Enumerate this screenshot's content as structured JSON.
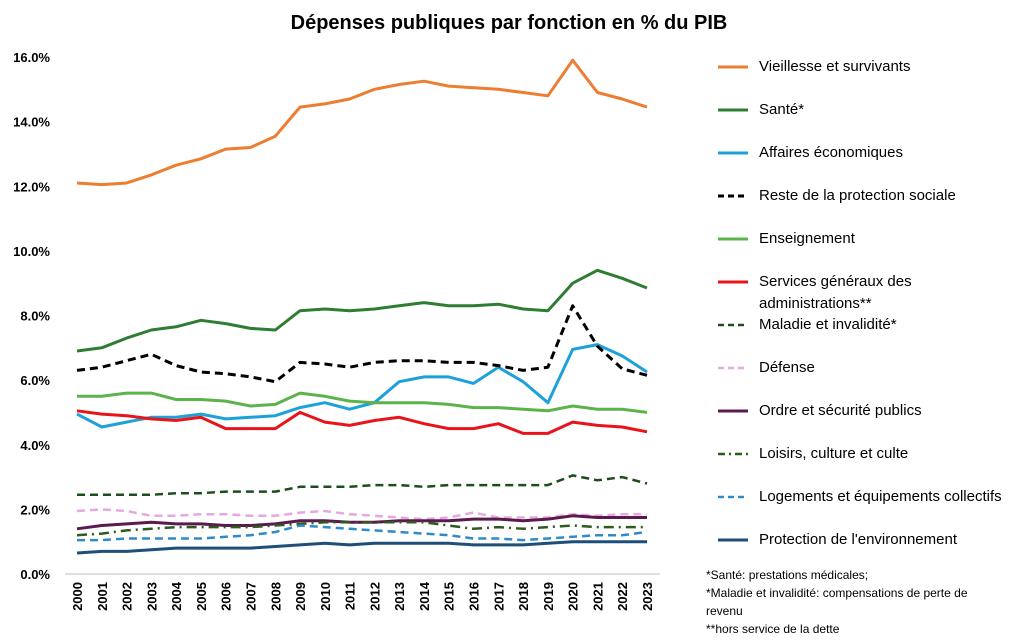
{
  "chart_data": {
    "type": "line",
    "title": "Dépenses publiques par fonction en % du PIB",
    "xlabel": "",
    "ylabel": "",
    "ylim": [
      0,
      16
    ],
    "yticks": [
      "0.0%",
      "2.0%",
      "4.0%",
      "6.0%",
      "8.0%",
      "10.0%",
      "12.0%",
      "14.0%",
      "16.0%"
    ],
    "grid": false,
    "legend_position": "right",
    "categories": [
      "2000",
      "2001",
      "2002",
      "2003",
      "2004",
      "2005",
      "2006",
      "2007",
      "2008",
      "2009",
      "2010",
      "2011",
      "2012",
      "2013",
      "2014",
      "2015",
      "2016",
      "2017",
      "2018",
      "2019",
      "2020",
      "2021",
      "2022",
      "2023"
    ],
    "series": [
      {
        "name": "Vieillesse et survivants",
        "color": "#ed7d31",
        "dash": "solid",
        "width": 3,
        "values": [
          12.1,
          12.05,
          12.1,
          12.35,
          12.65,
          12.85,
          13.15,
          13.2,
          13.55,
          14.45,
          14.55,
          14.7,
          15.0,
          15.15,
          15.25,
          15.1,
          15.05,
          15.0,
          14.9,
          14.8,
          15.9,
          14.9,
          14.7,
          14.45
        ]
      },
      {
        "name": "Santé*",
        "color": "#2e7d32",
        "dash": "solid",
        "width": 3,
        "values": [
          6.9,
          7.0,
          7.3,
          7.55,
          7.65,
          7.85,
          7.75,
          7.6,
          7.55,
          8.15,
          8.2,
          8.15,
          8.2,
          8.3,
          8.4,
          8.3,
          8.3,
          8.35,
          8.2,
          8.15,
          9.0,
          9.4,
          9.15,
          8.85
        ]
      },
      {
        "name": "Affaires économiques",
        "color": "#1ca1d9",
        "dash": "solid",
        "width": 3,
        "values": [
          4.95,
          4.55,
          4.7,
          4.85,
          4.85,
          4.95,
          4.8,
          4.85,
          4.9,
          5.15,
          5.3,
          5.1,
          5.3,
          5.95,
          6.1,
          6.1,
          5.9,
          6.4,
          5.95,
          5.3,
          6.95,
          7.1,
          6.75,
          6.25
        ]
      },
      {
        "name": "Reste de la protection sociale",
        "color": "#000000",
        "dash": "dash",
        "width": 3,
        "values": [
          6.3,
          6.4,
          6.6,
          6.8,
          6.45,
          6.25,
          6.2,
          6.1,
          5.95,
          6.55,
          6.5,
          6.4,
          6.55,
          6.6,
          6.6,
          6.55,
          6.55,
          6.45,
          6.3,
          6.4,
          8.3,
          7.05,
          6.35,
          6.15
        ]
      },
      {
        "name": "Enseignement",
        "color": "#5cb34a",
        "dash": "solid",
        "width": 3,
        "values": [
          5.5,
          5.5,
          5.6,
          5.6,
          5.4,
          5.4,
          5.35,
          5.2,
          5.25,
          5.6,
          5.5,
          5.35,
          5.3,
          5.3,
          5.3,
          5.25,
          5.15,
          5.15,
          5.1,
          5.05,
          5.2,
          5.1,
          5.1,
          5.0
        ]
      },
      {
        "name": "Services généraux des administrations**",
        "color": "#e8141b",
        "dash": "solid",
        "width": 3,
        "values": [
          5.05,
          4.95,
          4.9,
          4.8,
          4.75,
          4.85,
          4.5,
          4.5,
          4.5,
          5.0,
          4.7,
          4.6,
          4.75,
          4.85,
          4.65,
          4.5,
          4.5,
          4.65,
          4.35,
          4.35,
          4.7,
          4.6,
          4.55,
          4.4
        ]
      },
      {
        "name": "Maladie et invalidité*",
        "color": "#1e4d1e",
        "dash": "dash",
        "width": 2.5,
        "values": [
          2.45,
          2.45,
          2.45,
          2.45,
          2.5,
          2.5,
          2.55,
          2.55,
          2.55,
          2.7,
          2.7,
          2.7,
          2.75,
          2.75,
          2.7,
          2.75,
          2.75,
          2.75,
          2.75,
          2.75,
          3.05,
          2.9,
          3.0,
          2.8
        ]
      },
      {
        "name": "Défense",
        "color": "#e6a8e0",
        "dash": "dash",
        "width": 2.5,
        "values": [
          1.95,
          2.0,
          1.95,
          1.8,
          1.8,
          1.85,
          1.85,
          1.8,
          1.8,
          1.9,
          1.95,
          1.85,
          1.8,
          1.75,
          1.7,
          1.75,
          1.9,
          1.75,
          1.75,
          1.75,
          1.85,
          1.8,
          1.85,
          1.85
        ]
      },
      {
        "name": "Ordre et sécurité publics",
        "color": "#5a1a4f",
        "dash": "solid",
        "width": 3,
        "values": [
          1.4,
          1.5,
          1.55,
          1.6,
          1.55,
          1.55,
          1.5,
          1.5,
          1.55,
          1.65,
          1.65,
          1.6,
          1.6,
          1.65,
          1.65,
          1.65,
          1.7,
          1.7,
          1.65,
          1.7,
          1.8,
          1.75,
          1.75,
          1.75
        ]
      },
      {
        "name": "Loisirs, culture et culte",
        "color": "#2e5a1e",
        "dash": "dashdot",
        "width": 2.5,
        "values": [
          1.2,
          1.25,
          1.35,
          1.4,
          1.45,
          1.45,
          1.45,
          1.45,
          1.5,
          1.55,
          1.6,
          1.6,
          1.6,
          1.6,
          1.6,
          1.5,
          1.4,
          1.45,
          1.4,
          1.45,
          1.5,
          1.45,
          1.45,
          1.45
        ]
      },
      {
        "name": "Logements et équipements collectifs",
        "color": "#2e8bc8",
        "dash": "dash",
        "width": 2.5,
        "values": [
          1.05,
          1.05,
          1.1,
          1.1,
          1.1,
          1.1,
          1.15,
          1.2,
          1.3,
          1.5,
          1.45,
          1.4,
          1.35,
          1.3,
          1.25,
          1.2,
          1.1,
          1.1,
          1.05,
          1.1,
          1.15,
          1.2,
          1.2,
          1.3
        ]
      },
      {
        "name": "Protection de l'environnement",
        "color": "#1f4e79",
        "dash": "solid",
        "width": 3,
        "values": [
          0.65,
          0.7,
          0.7,
          0.75,
          0.8,
          0.8,
          0.8,
          0.8,
          0.85,
          0.9,
          0.95,
          0.9,
          0.95,
          0.95,
          0.95,
          0.95,
          0.9,
          0.9,
          0.9,
          0.95,
          1.0,
          1.0,
          1.0,
          1.0
        ]
      }
    ],
    "legend_labels": [
      "Vieillesse et survivants",
      "Santé*",
      "Affaires économiques",
      "Reste de la protection sociale",
      "Enseignement",
      "Services généraux des administrations**",
      "Maladie et invalidité*",
      "Défense",
      "Ordre et sécurité publics",
      "Loisirs, culture et culte",
      "Logements et équipements collectifs",
      "Protection de l'environnement"
    ],
    "footnotes": [
      "*Santé: prestations médicales;",
      "*Maladie et invalidité: compensations de perte de revenu",
      "**hors service de la dette"
    ]
  }
}
